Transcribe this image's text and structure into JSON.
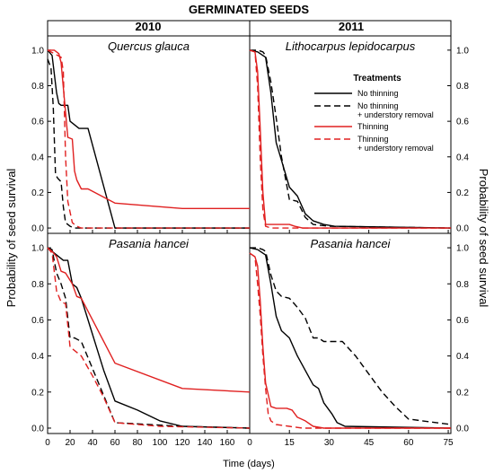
{
  "title": "GERMINATED SEEDS",
  "column_headers": [
    "2010",
    "2011"
  ],
  "ylabel": "Probability of seed survival",
  "xlabel": "Time (days)",
  "legend": {
    "title": "Treatments",
    "entries": [
      {
        "label_lines": [
          "No thinning"
        ],
        "color": "#000000",
        "dash": false
      },
      {
        "label_lines": [
          "No thinning",
          "+ understory removal"
        ],
        "color": "#000000",
        "dash": true
      },
      {
        "label_lines": [
          "Thinning"
        ],
        "color": "#e02020",
        "dash": false
      },
      {
        "label_lines": [
          "Thinning",
          "+ understory removal"
        ],
        "color": "#e02020",
        "dash": true
      }
    ]
  },
  "colors": {
    "no_thinning": "#000000",
    "thinning": "#e02020"
  },
  "chart_data": [
    {
      "type": "line",
      "panel": "top-left",
      "title": "Quercus glauca",
      "xlim": [
        0,
        180
      ],
      "ylim": [
        -0.03,
        1.08
      ],
      "xticks": [
        0,
        20,
        40,
        60,
        80,
        100,
        120,
        140,
        160
      ],
      "yticks": [
        0.0,
        0.2,
        0.4,
        0.6,
        0.8,
        1.0
      ],
      "series": [
        {
          "key": "no_thinning",
          "color": "#000000",
          "dash": false,
          "x": [
            0,
            4,
            8,
            10,
            12,
            18,
            20,
            28,
            36,
            60,
            62,
            180
          ],
          "y": [
            1.0,
            0.97,
            0.76,
            0.7,
            0.69,
            0.69,
            0.6,
            0.56,
            0.56,
            0.0,
            0.0,
            0.0
          ]
        },
        {
          "key": "no_thinning_understory",
          "color": "#000000",
          "dash": true,
          "x": [
            0,
            3,
            5,
            7,
            9,
            12,
            14,
            16,
            20,
            24,
            30,
            180
          ],
          "y": [
            0.95,
            0.9,
            0.68,
            0.3,
            0.28,
            0.26,
            0.12,
            0.03,
            0.01,
            0.0,
            0.0,
            0.0
          ]
        },
        {
          "key": "thinning",
          "color": "#e02020",
          "dash": false,
          "x": [
            0,
            6,
            10,
            12,
            18,
            22,
            24,
            26,
            30,
            36,
            60,
            120,
            180
          ],
          "y": [
            1.0,
            1.0,
            0.98,
            0.93,
            0.51,
            0.5,
            0.32,
            0.27,
            0.22,
            0.22,
            0.14,
            0.11,
            0.11
          ]
        },
        {
          "key": "thinning_understory",
          "color": "#e02020",
          "dash": true,
          "x": [
            0,
            6,
            9,
            12,
            14,
            16,
            18,
            22,
            26,
            30,
            180
          ],
          "y": [
            1.0,
            0.98,
            0.97,
            0.96,
            0.88,
            0.4,
            0.15,
            0.03,
            0.01,
            0.0,
            0.0
          ]
        }
      ]
    },
    {
      "type": "line",
      "panel": "top-right",
      "title": "Lithocarpus lepidocarpus",
      "xlim": [
        0,
        76
      ],
      "ylim": [
        -0.03,
        1.08
      ],
      "xticks": [
        0,
        15,
        30,
        45,
        60,
        75
      ],
      "yticks": [
        0.0,
        0.2,
        0.4,
        0.6,
        0.8,
        1.0
      ],
      "series": [
        {
          "key": "no_thinning",
          "color": "#000000",
          "dash": false,
          "x": [
            0,
            3,
            5,
            6,
            8,
            10,
            12,
            15,
            18,
            21,
            24,
            28,
            32,
            76
          ],
          "y": [
            1.0,
            0.99,
            0.97,
            0.96,
            0.76,
            0.48,
            0.38,
            0.23,
            0.18,
            0.08,
            0.04,
            0.02,
            0.01,
            0.0
          ]
        },
        {
          "key": "no_thinning_understory",
          "color": "#000000",
          "dash": true,
          "x": [
            0,
            3,
            5,
            6,
            8,
            10,
            12,
            15,
            18,
            21,
            24,
            30,
            76
          ],
          "y": [
            1.0,
            1.0,
            0.99,
            0.97,
            0.82,
            0.62,
            0.4,
            0.16,
            0.15,
            0.06,
            0.02,
            0.01,
            0.0
          ]
        },
        {
          "key": "thinning",
          "color": "#e02020",
          "dash": false,
          "x": [
            0,
            2,
            3,
            4,
            5,
            6,
            8,
            15,
            17,
            20,
            76
          ],
          "y": [
            1.0,
            0.99,
            0.88,
            0.55,
            0.2,
            0.02,
            0.02,
            0.02,
            0.01,
            0.0,
            0.0
          ]
        },
        {
          "key": "thinning_understory",
          "color": "#e02020",
          "dash": true,
          "x": [
            0,
            2,
            3,
            4,
            5,
            6,
            8,
            76
          ],
          "y": [
            1.0,
            0.99,
            0.8,
            0.38,
            0.1,
            0.01,
            0.0,
            0.0
          ]
        }
      ]
    },
    {
      "type": "line",
      "panel": "bottom-left",
      "title": "Pasania hancei",
      "xlim": [
        0,
        180
      ],
      "ylim": [
        -0.03,
        1.08
      ],
      "xticks": [
        0,
        20,
        40,
        60,
        80,
        100,
        120,
        140,
        160
      ],
      "yticks": [
        0.0,
        0.2,
        0.4,
        0.6,
        0.8,
        1.0
      ],
      "series": [
        {
          "key": "no_thinning",
          "color": "#000000",
          "dash": false,
          "x": [
            0,
            4,
            10,
            14,
            18,
            22,
            26,
            30,
            40,
            50,
            60,
            80,
            100,
            120,
            180
          ],
          "y": [
            1.0,
            0.98,
            0.95,
            0.93,
            0.93,
            0.8,
            0.78,
            0.72,
            0.52,
            0.32,
            0.15,
            0.1,
            0.04,
            0.01,
            0.0
          ]
        },
        {
          "key": "no_thinning_understory",
          "color": "#000000",
          "dash": true,
          "x": [
            0,
            4,
            8,
            12,
            16,
            20,
            24,
            30,
            60,
            120,
            180
          ],
          "y": [
            1.0,
            0.99,
            0.86,
            0.8,
            0.72,
            0.5,
            0.5,
            0.48,
            0.03,
            0.01,
            0.0
          ]
        },
        {
          "key": "thinning",
          "color": "#e02020",
          "dash": false,
          "x": [
            0,
            4,
            8,
            12,
            16,
            18,
            22,
            26,
            30,
            60,
            120,
            180
          ],
          "y": [
            1.0,
            0.98,
            0.95,
            0.87,
            0.86,
            0.84,
            0.8,
            0.73,
            0.72,
            0.36,
            0.22,
            0.2
          ]
        },
        {
          "key": "thinning_understory",
          "color": "#e02020",
          "dash": true,
          "x": [
            0,
            4,
            8,
            12,
            16,
            20,
            24,
            30,
            40,
            50,
            60,
            100,
            180
          ],
          "y": [
            1.0,
            0.97,
            0.76,
            0.7,
            0.69,
            0.45,
            0.43,
            0.4,
            0.29,
            0.17,
            0.03,
            0.01,
            0.0
          ]
        }
      ]
    },
    {
      "type": "line",
      "panel": "bottom-right",
      "title": "Pasania hancei",
      "xlim": [
        0,
        76
      ],
      "ylim": [
        -0.03,
        1.08
      ],
      "xticks": [
        0,
        15,
        30,
        45,
        60,
        75
      ],
      "yticks": [
        0.0,
        0.2,
        0.4,
        0.6,
        0.8,
        1.0
      ],
      "series": [
        {
          "key": "no_thinning",
          "color": "#000000",
          "dash": false,
          "x": [
            0,
            3,
            5,
            6,
            8,
            10,
            12,
            15,
            18,
            21,
            24,
            26,
            28,
            31,
            33,
            36,
            76
          ],
          "y": [
            1.0,
            0.99,
            0.97,
            0.96,
            0.8,
            0.62,
            0.54,
            0.5,
            0.4,
            0.32,
            0.24,
            0.22,
            0.14,
            0.08,
            0.03,
            0.01,
            0.0
          ]
        },
        {
          "key": "no_thinning_understory",
          "color": "#000000",
          "dash": true,
          "x": [
            0,
            3,
            5,
            6,
            8,
            10,
            12,
            15,
            18,
            21,
            24,
            26,
            28,
            31,
            35,
            40,
            45,
            50,
            55,
            60,
            76
          ],
          "y": [
            1.0,
            1.0,
            0.99,
            0.98,
            0.85,
            0.76,
            0.73,
            0.72,
            0.67,
            0.61,
            0.5,
            0.5,
            0.48,
            0.48,
            0.48,
            0.4,
            0.3,
            0.2,
            0.12,
            0.05,
            0.02
          ]
        },
        {
          "key": "thinning",
          "color": "#e02020",
          "dash": false,
          "x": [
            0,
            2,
            3,
            4,
            5,
            6,
            8,
            10,
            14,
            16,
            18,
            21,
            24,
            28,
            76
          ],
          "y": [
            0.97,
            0.95,
            0.9,
            0.7,
            0.45,
            0.25,
            0.12,
            0.11,
            0.11,
            0.1,
            0.06,
            0.04,
            0.01,
            0.0,
            0.0
          ]
        },
        {
          "key": "thinning_understory",
          "color": "#e02020",
          "dash": true,
          "x": [
            0,
            2,
            3,
            4,
            5,
            6,
            7,
            8,
            10,
            15,
            20,
            76
          ],
          "y": [
            0.97,
            0.95,
            0.8,
            0.62,
            0.4,
            0.22,
            0.08,
            0.04,
            0.02,
            0.01,
            0.0,
            0.0
          ]
        }
      ]
    }
  ]
}
